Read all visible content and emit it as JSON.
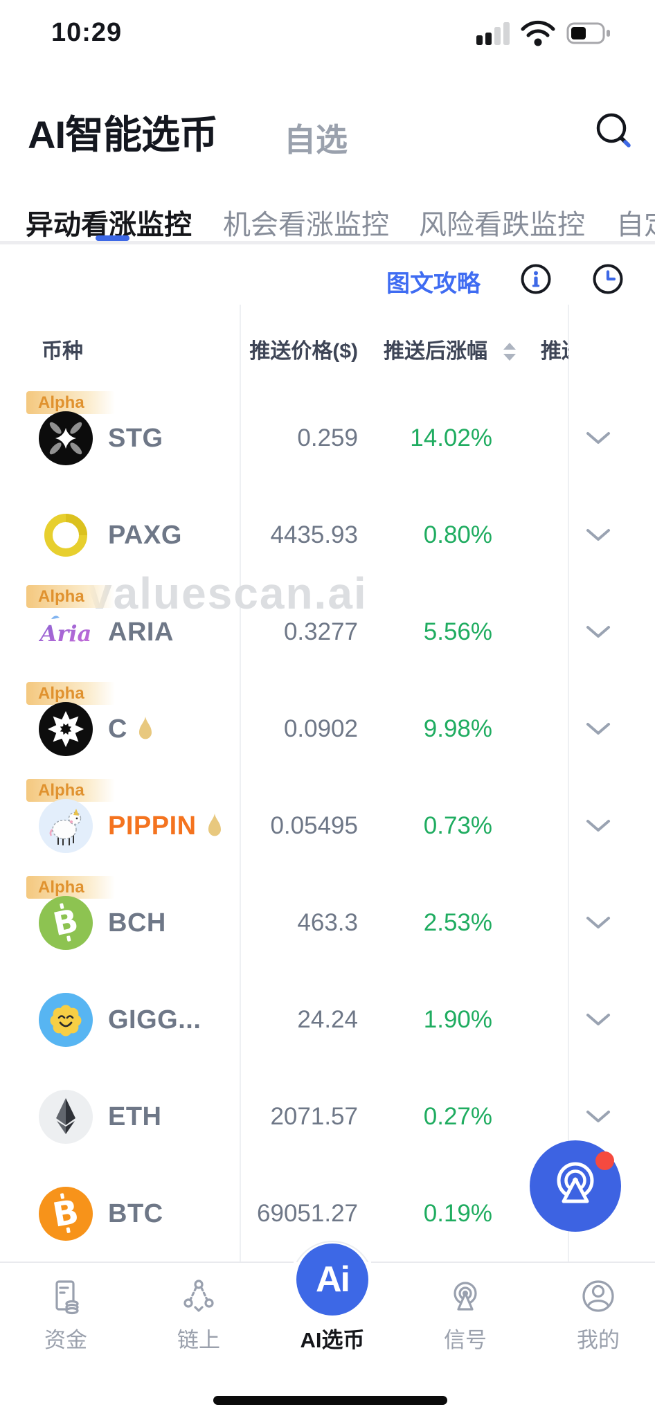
{
  "status_bar": {
    "time": "10:29"
  },
  "header": {
    "title": "AI智能选币",
    "watchlist_tab": "自选"
  },
  "tabs": {
    "items": [
      {
        "label": "异动看涨监控",
        "active": true
      },
      {
        "label": "机会看涨监控",
        "active": false
      },
      {
        "label": "风险看跌监控",
        "active": false
      },
      {
        "label": "自定",
        "active": false
      }
    ]
  },
  "toolbar": {
    "guide_link": "图文攻略"
  },
  "table": {
    "alpha_badge_label": "Alpha",
    "columns": {
      "coin": "币种",
      "push_price": "推送价格($)",
      "change_after_push": "推送后涨幅",
      "truncated_next": "推送"
    },
    "rows": [
      {
        "symbol": "STG",
        "icon": "stg",
        "alpha": true,
        "hot": false,
        "highlight": false,
        "price": "0.259",
        "change": "14.02%"
      },
      {
        "symbol": "PAXG",
        "icon": "paxg",
        "alpha": false,
        "hot": false,
        "highlight": false,
        "price": "4435.93",
        "change": "0.80%"
      },
      {
        "symbol": "ARIA",
        "icon": "aria",
        "alpha": true,
        "hot": false,
        "highlight": false,
        "price": "0.3277",
        "change": "5.56%"
      },
      {
        "symbol": "C",
        "icon": "c",
        "alpha": true,
        "hot": true,
        "highlight": false,
        "price": "0.0902",
        "change": "9.98%"
      },
      {
        "symbol": "PIPPIN",
        "icon": "pippin",
        "alpha": true,
        "hot": true,
        "highlight": true,
        "price": "0.05495",
        "change": "0.73%"
      },
      {
        "symbol": "BCH",
        "icon": "bch",
        "alpha": true,
        "hot": false,
        "highlight": false,
        "price": "463.3",
        "change": "2.53%"
      },
      {
        "symbol": "GIGG...",
        "icon": "gigg",
        "alpha": false,
        "hot": false,
        "highlight": false,
        "price": "24.24",
        "change": "1.90%"
      },
      {
        "symbol": "ETH",
        "icon": "eth",
        "alpha": false,
        "hot": false,
        "highlight": false,
        "price": "2071.57",
        "change": "0.27%"
      },
      {
        "symbol": "BTC",
        "icon": "btc",
        "alpha": false,
        "hot": false,
        "highlight": false,
        "price": "69051.27",
        "change": "0.19%"
      }
    ]
  },
  "watermark": "valuescan.ai",
  "bottom_nav": {
    "center_logo": "Ai",
    "items": [
      {
        "label": "资金",
        "icon": "funds",
        "active": false
      },
      {
        "label": "链上",
        "icon": "chain",
        "active": false
      },
      {
        "label": "AI选币",
        "icon": "ai",
        "active": true
      },
      {
        "label": "信号",
        "icon": "signal",
        "active": false
      },
      {
        "label": "我的",
        "icon": "profile",
        "active": false
      }
    ]
  },
  "colors": {
    "accent_blue": "#3d68e6",
    "link_blue": "#3f6cf2",
    "green_up": "#1fac60",
    "alpha_orange": "#e0922f",
    "highlight_orange": "#f4731f",
    "fab_badge_red": "#f54a3f"
  }
}
